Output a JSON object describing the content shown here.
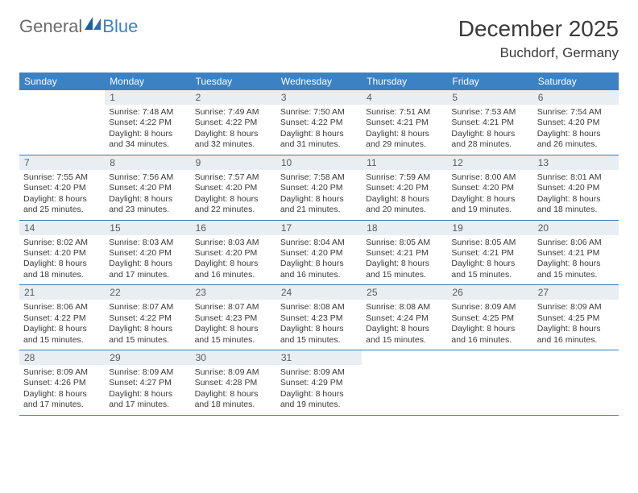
{
  "brand": {
    "part1": "General",
    "part2": "Blue"
  },
  "title": "December 2025",
  "location": "Buchdorf, Germany",
  "colors": {
    "header_bg": "#3b82c4",
    "header_text": "#ffffff",
    "daynum_bg": "#e9eef2",
    "rule": "#3b7bb0",
    "text": "#3a3a3a",
    "logo_gray": "#6b6b6b",
    "logo_blue": "#3b82c4"
  },
  "weekdays": [
    "Sunday",
    "Monday",
    "Tuesday",
    "Wednesday",
    "Thursday",
    "Friday",
    "Saturday"
  ],
  "weeks": [
    [
      {
        "empty": true
      },
      {
        "num": "1",
        "sunrise": "Sunrise: 7:48 AM",
        "sunset": "Sunset: 4:22 PM",
        "day1": "Daylight: 8 hours",
        "day2": "and 34 minutes."
      },
      {
        "num": "2",
        "sunrise": "Sunrise: 7:49 AM",
        "sunset": "Sunset: 4:22 PM",
        "day1": "Daylight: 8 hours",
        "day2": "and 32 minutes."
      },
      {
        "num": "3",
        "sunrise": "Sunrise: 7:50 AM",
        "sunset": "Sunset: 4:22 PM",
        "day1": "Daylight: 8 hours",
        "day2": "and 31 minutes."
      },
      {
        "num": "4",
        "sunrise": "Sunrise: 7:51 AM",
        "sunset": "Sunset: 4:21 PM",
        "day1": "Daylight: 8 hours",
        "day2": "and 29 minutes."
      },
      {
        "num": "5",
        "sunrise": "Sunrise: 7:53 AM",
        "sunset": "Sunset: 4:21 PM",
        "day1": "Daylight: 8 hours",
        "day2": "and 28 minutes."
      },
      {
        "num": "6",
        "sunrise": "Sunrise: 7:54 AM",
        "sunset": "Sunset: 4:20 PM",
        "day1": "Daylight: 8 hours",
        "day2": "and 26 minutes."
      }
    ],
    [
      {
        "num": "7",
        "sunrise": "Sunrise: 7:55 AM",
        "sunset": "Sunset: 4:20 PM",
        "day1": "Daylight: 8 hours",
        "day2": "and 25 minutes."
      },
      {
        "num": "8",
        "sunrise": "Sunrise: 7:56 AM",
        "sunset": "Sunset: 4:20 PM",
        "day1": "Daylight: 8 hours",
        "day2": "and 23 minutes."
      },
      {
        "num": "9",
        "sunrise": "Sunrise: 7:57 AM",
        "sunset": "Sunset: 4:20 PM",
        "day1": "Daylight: 8 hours",
        "day2": "and 22 minutes."
      },
      {
        "num": "10",
        "sunrise": "Sunrise: 7:58 AM",
        "sunset": "Sunset: 4:20 PM",
        "day1": "Daylight: 8 hours",
        "day2": "and 21 minutes."
      },
      {
        "num": "11",
        "sunrise": "Sunrise: 7:59 AM",
        "sunset": "Sunset: 4:20 PM",
        "day1": "Daylight: 8 hours",
        "day2": "and 20 minutes."
      },
      {
        "num": "12",
        "sunrise": "Sunrise: 8:00 AM",
        "sunset": "Sunset: 4:20 PM",
        "day1": "Daylight: 8 hours",
        "day2": "and 19 minutes."
      },
      {
        "num": "13",
        "sunrise": "Sunrise: 8:01 AM",
        "sunset": "Sunset: 4:20 PM",
        "day1": "Daylight: 8 hours",
        "day2": "and 18 minutes."
      }
    ],
    [
      {
        "num": "14",
        "sunrise": "Sunrise: 8:02 AM",
        "sunset": "Sunset: 4:20 PM",
        "day1": "Daylight: 8 hours",
        "day2": "and 18 minutes."
      },
      {
        "num": "15",
        "sunrise": "Sunrise: 8:03 AM",
        "sunset": "Sunset: 4:20 PM",
        "day1": "Daylight: 8 hours",
        "day2": "and 17 minutes."
      },
      {
        "num": "16",
        "sunrise": "Sunrise: 8:03 AM",
        "sunset": "Sunset: 4:20 PM",
        "day1": "Daylight: 8 hours",
        "day2": "and 16 minutes."
      },
      {
        "num": "17",
        "sunrise": "Sunrise: 8:04 AM",
        "sunset": "Sunset: 4:20 PM",
        "day1": "Daylight: 8 hours",
        "day2": "and 16 minutes."
      },
      {
        "num": "18",
        "sunrise": "Sunrise: 8:05 AM",
        "sunset": "Sunset: 4:21 PM",
        "day1": "Daylight: 8 hours",
        "day2": "and 15 minutes."
      },
      {
        "num": "19",
        "sunrise": "Sunrise: 8:05 AM",
        "sunset": "Sunset: 4:21 PM",
        "day1": "Daylight: 8 hours",
        "day2": "and 15 minutes."
      },
      {
        "num": "20",
        "sunrise": "Sunrise: 8:06 AM",
        "sunset": "Sunset: 4:21 PM",
        "day1": "Daylight: 8 hours",
        "day2": "and 15 minutes."
      }
    ],
    [
      {
        "num": "21",
        "sunrise": "Sunrise: 8:06 AM",
        "sunset": "Sunset: 4:22 PM",
        "day1": "Daylight: 8 hours",
        "day2": "and 15 minutes."
      },
      {
        "num": "22",
        "sunrise": "Sunrise: 8:07 AM",
        "sunset": "Sunset: 4:22 PM",
        "day1": "Daylight: 8 hours",
        "day2": "and 15 minutes."
      },
      {
        "num": "23",
        "sunrise": "Sunrise: 8:07 AM",
        "sunset": "Sunset: 4:23 PM",
        "day1": "Daylight: 8 hours",
        "day2": "and 15 minutes."
      },
      {
        "num": "24",
        "sunrise": "Sunrise: 8:08 AM",
        "sunset": "Sunset: 4:23 PM",
        "day1": "Daylight: 8 hours",
        "day2": "and 15 minutes."
      },
      {
        "num": "25",
        "sunrise": "Sunrise: 8:08 AM",
        "sunset": "Sunset: 4:24 PM",
        "day1": "Daylight: 8 hours",
        "day2": "and 15 minutes."
      },
      {
        "num": "26",
        "sunrise": "Sunrise: 8:09 AM",
        "sunset": "Sunset: 4:25 PM",
        "day1": "Daylight: 8 hours",
        "day2": "and 16 minutes."
      },
      {
        "num": "27",
        "sunrise": "Sunrise: 8:09 AM",
        "sunset": "Sunset: 4:25 PM",
        "day1": "Daylight: 8 hours",
        "day2": "and 16 minutes."
      }
    ],
    [
      {
        "num": "28",
        "sunrise": "Sunrise: 8:09 AM",
        "sunset": "Sunset: 4:26 PM",
        "day1": "Daylight: 8 hours",
        "day2": "and 17 minutes."
      },
      {
        "num": "29",
        "sunrise": "Sunrise: 8:09 AM",
        "sunset": "Sunset: 4:27 PM",
        "day1": "Daylight: 8 hours",
        "day2": "and 17 minutes."
      },
      {
        "num": "30",
        "sunrise": "Sunrise: 8:09 AM",
        "sunset": "Sunset: 4:28 PM",
        "day1": "Daylight: 8 hours",
        "day2": "and 18 minutes."
      },
      {
        "num": "31",
        "sunrise": "Sunrise: 8:09 AM",
        "sunset": "Sunset: 4:29 PM",
        "day1": "Daylight: 8 hours",
        "day2": "and 19 minutes."
      },
      {
        "empty": true
      },
      {
        "empty": true
      },
      {
        "empty": true
      }
    ]
  ]
}
